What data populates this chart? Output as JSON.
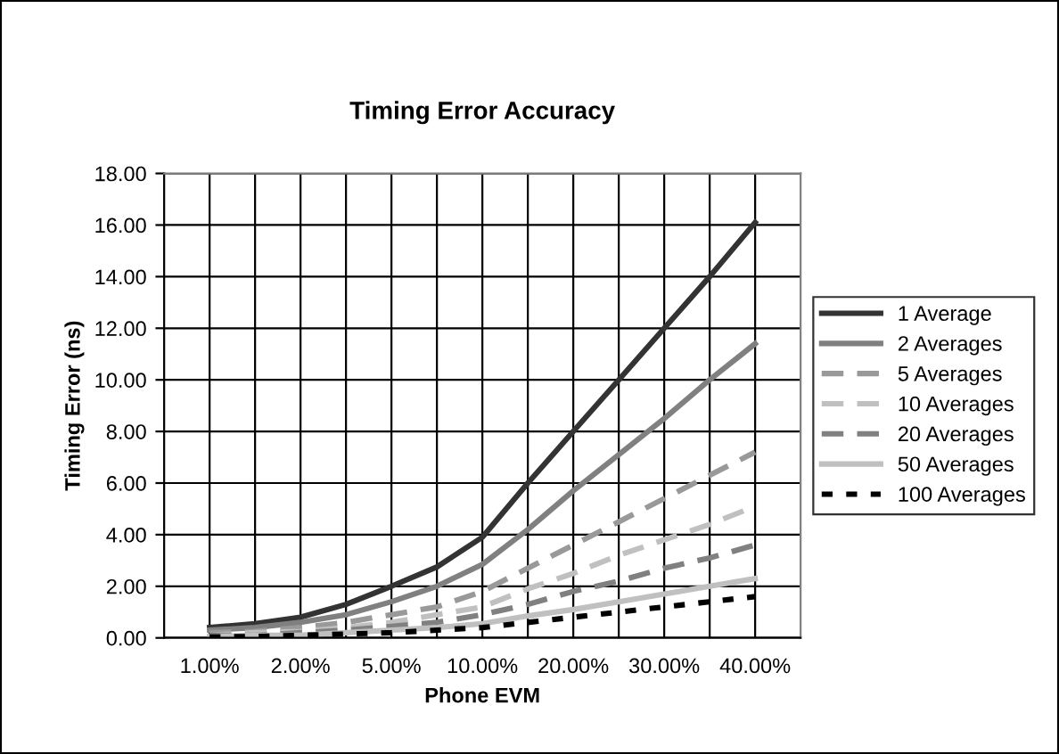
{
  "chart_data": {
    "type": "line",
    "title": "Timing Error Accuracy",
    "xlabel": "Phone EVM",
    "ylabel": "Timing Error (ns)",
    "categories": [
      "1.00%",
      null,
      "2.00%",
      null,
      "5.00%",
      null,
      "10.00%",
      null,
      "20.00%",
      null,
      "30.00%",
      null,
      "40.00%"
    ],
    "series": [
      {
        "name": "1 Average",
        "color": "#333333",
        "line_style": "solid",
        "values": [
          0.4,
          0.55,
          0.8,
          1.3,
          2.0,
          2.75,
          3.9,
          6.0,
          8.0,
          10.0,
          12.0,
          14.0,
          16.1
        ]
      },
      {
        "name": "2 Averages",
        "color": "#808080",
        "line_style": "solid",
        "values": [
          0.3,
          0.4,
          0.6,
          0.9,
          1.4,
          2.0,
          2.85,
          4.2,
          5.7,
          7.1,
          8.5,
          10.0,
          11.4
        ]
      },
      {
        "name": "5 Averages",
        "color": "#999999",
        "line_style": "dashed",
        "values": [
          0.2,
          0.25,
          0.4,
          0.6,
          0.9,
          1.2,
          1.8,
          2.7,
          3.6,
          4.5,
          5.4,
          6.3,
          7.2
        ]
      },
      {
        "name": "10 Averages",
        "color": "#c0c0c0",
        "line_style": "dashed",
        "values": [
          0.1,
          0.2,
          0.25,
          0.4,
          0.6,
          0.9,
          1.2,
          1.9,
          2.5,
          3.2,
          3.8,
          4.4,
          5.1
        ]
      },
      {
        "name": "20 Averages",
        "color": "#808080",
        "line_style": "dashed",
        "values": [
          0.1,
          0.1,
          0.2,
          0.3,
          0.45,
          0.6,
          0.9,
          1.3,
          1.8,
          2.2,
          2.7,
          3.1,
          3.6
        ]
      },
      {
        "name": "50 Averages",
        "color": "#c0c0c0",
        "line_style": "solid",
        "values": [
          0.05,
          0.1,
          0.1,
          0.2,
          0.3,
          0.4,
          0.55,
          0.85,
          1.1,
          1.4,
          1.7,
          2.0,
          2.3
        ]
      },
      {
        "name": "100 Averages",
        "color": "#000000",
        "line_style": "dotted",
        "values": [
          0.04,
          0.05,
          0.1,
          0.15,
          0.2,
          0.3,
          0.4,
          0.6,
          0.8,
          1.0,
          1.2,
          1.4,
          1.6
        ]
      }
    ],
    "ylim": [
      0,
      18
    ],
    "yticks": [
      {
        "value": 0,
        "label": "0.00"
      },
      {
        "value": 2,
        "label": "2.00"
      },
      {
        "value": 4,
        "label": "4.00"
      },
      {
        "value": 6,
        "label": "6.00"
      },
      {
        "value": 8,
        "label": "8.00"
      },
      {
        "value": 10,
        "label": "10.00"
      },
      {
        "value": 12,
        "label": "12.00"
      },
      {
        "value": 14,
        "label": "14.00"
      },
      {
        "value": 16,
        "label": "16.00"
      },
      {
        "value": 18,
        "label": "18.00"
      }
    ],
    "grid": true,
    "legend": "right",
    "marker": "none"
  }
}
